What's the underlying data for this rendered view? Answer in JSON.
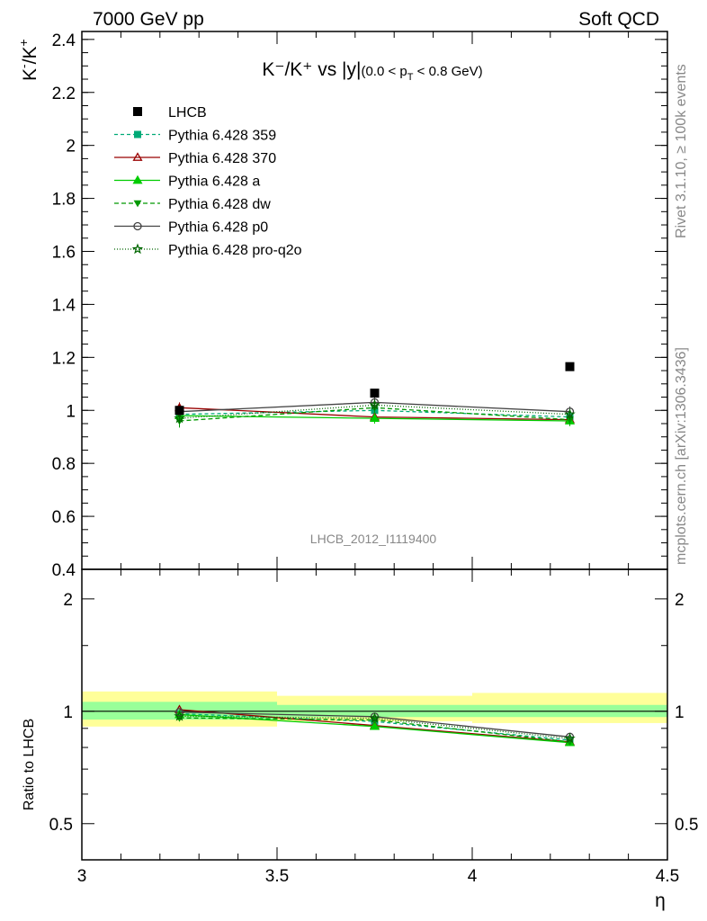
{
  "header": {
    "left": "7000 GeV pp",
    "right": "Soft QCD"
  },
  "side_labels": {
    "rivet": "Rivet 3.1.10, ≥ 100k events",
    "mcplots": "mcplots.cern.ch [arXiv:1306.3436]"
  },
  "watermark": "LHCB_2012_I1119400",
  "chart_data": {
    "type": "line",
    "title": {
      "main": "K⁻/K⁺ vs |y|",
      "cut_open": "(0.0 < p",
      "cut_sub": "T",
      "cut_close": " < 0.8 GeV)"
    },
    "ylabel": {
      "base1": "K",
      "sup1": "-",
      "slash": "/K",
      "sup2": "+"
    },
    "xlabel": "η",
    "ratio_ylabel": "Ratio to LHCB",
    "xlim": [
      3.0,
      4.5
    ],
    "ylim": [
      0.4,
      2.43
    ],
    "ratio_ylim": [
      0.4,
      2.4
    ],
    "ratio_log": true,
    "x_ticks": [
      3.0,
      3.5,
      4.0,
      4.5
    ],
    "x_tick_labels": [
      "3",
      "3.5",
      "4",
      "4.5"
    ],
    "y_ticks": [
      0.4,
      0.6,
      0.8,
      1.0,
      1.2,
      1.4,
      1.6,
      1.8,
      2.0,
      2.2,
      2.4
    ],
    "y_tick_labels": [
      "0.4",
      "0.6",
      "0.8",
      "1",
      "1.2",
      "1.4",
      "1.6",
      "1.8",
      "2",
      "2.2",
      "2.4"
    ],
    "ratio_ticks": [
      0.5,
      1,
      2
    ],
    "ratio_tick_labels": [
      "0.5",
      "1",
      "2"
    ],
    "x": [
      3.25,
      3.75,
      4.25
    ],
    "bins": [
      [
        3.0,
        3.5
      ],
      [
        3.5,
        4.0
      ],
      [
        4.0,
        4.5
      ]
    ],
    "data": {
      "name": "LHCB",
      "values": [
        1.0,
        1.065,
        1.165
      ],
      "ratio_inner": [
        [
          0.95,
          1.06
        ],
        [
          0.965,
          1.04
        ],
        [
          0.965,
          1.04
        ]
      ],
      "ratio_outer": [
        [
          0.91,
          1.13
        ],
        [
          0.94,
          1.1
        ],
        [
          0.93,
          1.12
        ]
      ]
    },
    "series": [
      {
        "name": "Pythia 6.428 359",
        "color": "#00aa77",
        "dash": "4,3",
        "marker": "square",
        "values": [
          0.985,
          1.0,
          0.975
        ],
        "errors": [
          0.025,
          0.02,
          0.02
        ]
      },
      {
        "name": "Pythia 6.428 370",
        "color": "#990000",
        "dash": "",
        "marker": "triangle-open",
        "values": [
          1.01,
          0.975,
          0.965
        ],
        "errors": [
          0.02,
          0.02,
          0.02
        ]
      },
      {
        "name": "Pythia 6.428 a",
        "color": "#00cc00",
        "dash": "",
        "marker": "triangle",
        "values": [
          0.98,
          0.97,
          0.96
        ],
        "errors": [
          0.02,
          0.02,
          0.02
        ]
      },
      {
        "name": "Pythia 6.428 dw",
        "color": "#009900",
        "dash": "5,3",
        "marker": "triangle-down",
        "values": [
          0.96,
          1.01,
          0.965
        ],
        "errors": [
          0.025,
          0.02,
          0.02
        ]
      },
      {
        "name": "Pythia 6.428 p0",
        "color": "#444444",
        "dash": "",
        "marker": "circle-open",
        "values": [
          0.995,
          1.03,
          0.995
        ],
        "errors": [
          0.02,
          0.02,
          0.02
        ]
      },
      {
        "name": "Pythia 6.428 pro-q2o",
        "color": "#006600",
        "dash": "1,2",
        "marker": "star",
        "values": [
          0.97,
          1.02,
          0.985
        ],
        "errors": [
          0.02,
          0.02,
          0.02
        ]
      }
    ]
  }
}
